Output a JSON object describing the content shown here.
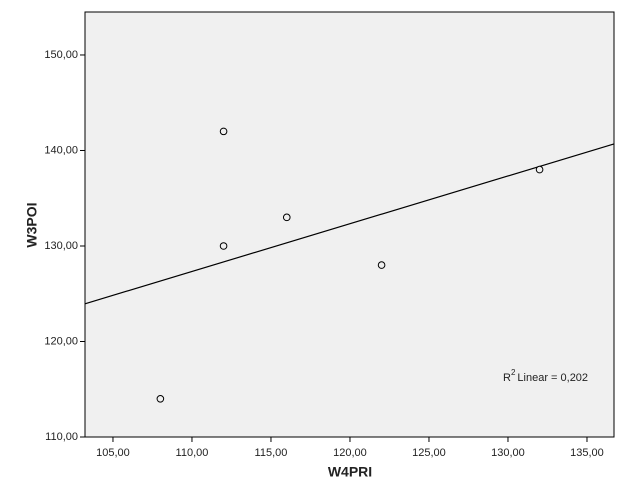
{
  "chart_data": {
    "type": "scatter",
    "x_label": "W4PRI",
    "y_label": "W3POI",
    "x": [
      108,
      112,
      112,
      116,
      122,
      132
    ],
    "values": [
      114,
      142,
      130,
      133,
      128,
      138
    ],
    "xlim": [
      103.23,
      136.71
    ],
    "ylim": [
      110,
      154.5
    ],
    "xticks": [
      {
        "value": 105,
        "label": "105,00"
      },
      {
        "value": 110,
        "label": "110,00"
      },
      {
        "value": 115,
        "label": "115,00"
      },
      {
        "value": 120,
        "label": "120,00"
      },
      {
        "value": 125,
        "label": "125,00"
      },
      {
        "value": 130,
        "label": "130,00"
      },
      {
        "value": 135,
        "label": "135,00"
      }
    ],
    "yticks": [
      {
        "value": 110,
        "label": "110,00"
      },
      {
        "value": 120,
        "label": "120,00"
      },
      {
        "value": 130,
        "label": "130,00"
      },
      {
        "value": 140,
        "label": "140,00"
      },
      {
        "value": 150,
        "label": "150,00"
      }
    ],
    "fit_line": "linear",
    "annotation": {
      "base": "R",
      "sup": "2",
      "text": "Linear = 0,202"
    },
    "background": "#f0f0f0",
    "color": "#000000"
  }
}
